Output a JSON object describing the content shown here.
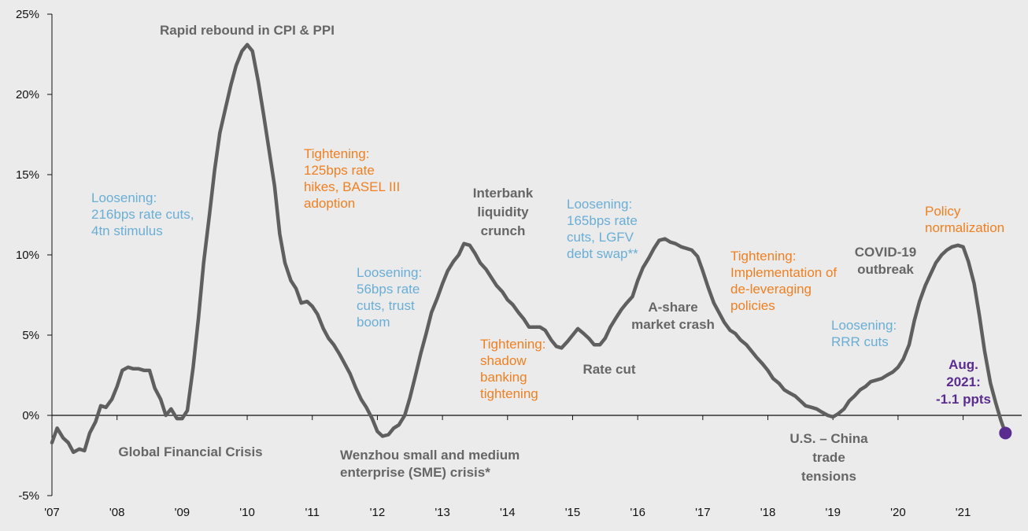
{
  "chart_data": {
    "type": "line",
    "title": "",
    "xlabel": "",
    "ylabel": "",
    "x_range": [
      2007.0,
      2021.9
    ],
    "ylim": [
      -5,
      25
    ],
    "y_ticks": [
      25,
      20,
      15,
      10,
      5,
      0,
      -5
    ],
    "y_tick_labels": [
      "25%",
      "20%",
      "15%",
      "10%",
      "5%",
      "0%",
      "-5%"
    ],
    "x_ticks": [
      2007,
      2008,
      2009,
      2010,
      2011,
      2012,
      2013,
      2014,
      2015,
      2016,
      2017,
      2018,
      2019,
      2020,
      2021
    ],
    "x_tick_labels": [
      "'07",
      "'08",
      "'09",
      "'10",
      "'11",
      "'12",
      "'13",
      "'14",
      "'15",
      "'16",
      "'17",
      "'18",
      "'19",
      "'20",
      "'21"
    ],
    "grid": false,
    "series": [
      {
        "color": "#5f5f5f",
        "points": [
          [
            2007.0,
            -1.7
          ],
          [
            2007.08,
            -0.8
          ],
          [
            2007.17,
            -1.4
          ],
          [
            2007.25,
            -1.7
          ],
          [
            2007.33,
            -2.3
          ],
          [
            2007.42,
            -2.1
          ],
          [
            2007.5,
            -2.2
          ],
          [
            2007.58,
            -1.1
          ],
          [
            2007.67,
            -0.4
          ],
          [
            2007.75,
            0.6
          ],
          [
            2007.83,
            0.5
          ],
          [
            2007.92,
            1.0
          ],
          [
            2008.0,
            1.8
          ],
          [
            2008.08,
            2.8
          ],
          [
            2008.17,
            3.0
          ],
          [
            2008.25,
            2.9
          ],
          [
            2008.33,
            2.9
          ],
          [
            2008.42,
            2.8
          ],
          [
            2008.5,
            2.8
          ],
          [
            2008.58,
            1.7
          ],
          [
            2008.67,
            1.0
          ],
          [
            2008.75,
            0.0
          ],
          [
            2008.83,
            0.4
          ],
          [
            2008.92,
            -0.2
          ],
          [
            2009.0,
            -0.2
          ],
          [
            2009.08,
            0.3
          ],
          [
            2009.17,
            3.0
          ],
          [
            2009.25,
            6.0
          ],
          [
            2009.33,
            9.5
          ],
          [
            2009.42,
            12.5
          ],
          [
            2009.5,
            15.3
          ],
          [
            2009.58,
            17.6
          ],
          [
            2009.67,
            19.2
          ],
          [
            2009.75,
            20.6
          ],
          [
            2009.83,
            21.8
          ],
          [
            2009.92,
            22.7
          ],
          [
            2010.0,
            23.1
          ],
          [
            2010.08,
            22.7
          ],
          [
            2010.17,
            20.8
          ],
          [
            2010.25,
            18.8
          ],
          [
            2010.33,
            16.7
          ],
          [
            2010.42,
            14.3
          ],
          [
            2010.5,
            11.3
          ],
          [
            2010.58,
            9.5
          ],
          [
            2010.67,
            8.4
          ],
          [
            2010.75,
            7.9
          ],
          [
            2010.83,
            7.0
          ],
          [
            2010.92,
            7.1
          ],
          [
            2011.0,
            6.8
          ],
          [
            2011.08,
            6.3
          ],
          [
            2011.17,
            5.4
          ],
          [
            2011.25,
            4.8
          ],
          [
            2011.33,
            4.4
          ],
          [
            2011.42,
            3.8
          ],
          [
            2011.5,
            3.2
          ],
          [
            2011.58,
            2.6
          ],
          [
            2011.67,
            1.7
          ],
          [
            2011.75,
            1.0
          ],
          [
            2011.83,
            0.5
          ],
          [
            2011.92,
            -0.2
          ],
          [
            2012.0,
            -1.0
          ],
          [
            2012.08,
            -1.3
          ],
          [
            2012.17,
            -1.2
          ],
          [
            2012.25,
            -0.8
          ],
          [
            2012.33,
            -0.6
          ],
          [
            2012.42,
            0.0
          ],
          [
            2012.5,
            1.1
          ],
          [
            2012.58,
            2.4
          ],
          [
            2012.67,
            3.9
          ],
          [
            2012.75,
            5.1
          ],
          [
            2012.83,
            6.4
          ],
          [
            2012.92,
            7.3
          ],
          [
            2013.0,
            8.2
          ],
          [
            2013.08,
            9.0
          ],
          [
            2013.17,
            9.6
          ],
          [
            2013.25,
            10.0
          ],
          [
            2013.33,
            10.7
          ],
          [
            2013.42,
            10.6
          ],
          [
            2013.5,
            10.1
          ],
          [
            2013.58,
            9.5
          ],
          [
            2013.67,
            9.1
          ],
          [
            2013.75,
            8.6
          ],
          [
            2013.83,
            8.1
          ],
          [
            2013.92,
            7.7
          ],
          [
            2014.0,
            7.2
          ],
          [
            2014.08,
            6.9
          ],
          [
            2014.17,
            6.4
          ],
          [
            2014.25,
            6.0
          ],
          [
            2014.33,
            5.5
          ],
          [
            2014.42,
            5.5
          ],
          [
            2014.5,
            5.5
          ],
          [
            2014.58,
            5.3
          ],
          [
            2014.67,
            4.7
          ],
          [
            2014.75,
            4.3
          ],
          [
            2014.83,
            4.2
          ],
          [
            2014.92,
            4.6
          ],
          [
            2015.0,
            5.0
          ],
          [
            2015.08,
            5.4
          ],
          [
            2015.17,
            5.1
          ],
          [
            2015.25,
            4.8
          ],
          [
            2015.33,
            4.4
          ],
          [
            2015.42,
            4.4
          ],
          [
            2015.5,
            4.8
          ],
          [
            2015.58,
            5.5
          ],
          [
            2015.67,
            6.1
          ],
          [
            2015.75,
            6.6
          ],
          [
            2015.83,
            7.0
          ],
          [
            2015.92,
            7.4
          ],
          [
            2016.0,
            8.4
          ],
          [
            2016.08,
            9.2
          ],
          [
            2016.17,
            9.8
          ],
          [
            2016.25,
            10.4
          ],
          [
            2016.33,
            10.9
          ],
          [
            2016.42,
            11.0
          ],
          [
            2016.5,
            10.8
          ],
          [
            2016.58,
            10.7
          ],
          [
            2016.67,
            10.5
          ],
          [
            2016.75,
            10.4
          ],
          [
            2016.83,
            10.3
          ],
          [
            2016.92,
            9.9
          ],
          [
            2017.0,
            9.0
          ],
          [
            2017.08,
            8.0
          ],
          [
            2017.17,
            7.0
          ],
          [
            2017.25,
            6.4
          ],
          [
            2017.33,
            5.8
          ],
          [
            2017.42,
            5.3
          ],
          [
            2017.5,
            5.1
          ],
          [
            2017.58,
            4.7
          ],
          [
            2017.67,
            4.4
          ],
          [
            2017.75,
            4.0
          ],
          [
            2017.83,
            3.6
          ],
          [
            2017.92,
            3.2
          ],
          [
            2018.0,
            2.8
          ],
          [
            2018.08,
            2.3
          ],
          [
            2018.17,
            2.0
          ],
          [
            2018.25,
            1.6
          ],
          [
            2018.33,
            1.4
          ],
          [
            2018.42,
            1.2
          ],
          [
            2018.5,
            0.9
          ],
          [
            2018.58,
            0.6
          ],
          [
            2018.67,
            0.5
          ],
          [
            2018.75,
            0.4
          ],
          [
            2018.83,
            0.2
          ],
          [
            2018.92,
            0.0
          ],
          [
            2019.0,
            -0.1
          ],
          [
            2019.08,
            0.1
          ],
          [
            2019.17,
            0.4
          ],
          [
            2019.25,
            0.9
          ],
          [
            2019.33,
            1.2
          ],
          [
            2019.42,
            1.6
          ],
          [
            2019.5,
            1.8
          ],
          [
            2019.58,
            2.1
          ],
          [
            2019.67,
            2.2
          ],
          [
            2019.75,
            2.3
          ],
          [
            2019.83,
            2.5
          ],
          [
            2019.92,
            2.7
          ],
          [
            2020.0,
            3.0
          ],
          [
            2020.08,
            3.5
          ],
          [
            2020.17,
            4.4
          ],
          [
            2020.25,
            5.9
          ],
          [
            2020.33,
            7.1
          ],
          [
            2020.42,
            8.1
          ],
          [
            2020.5,
            8.8
          ],
          [
            2020.58,
            9.5
          ],
          [
            2020.67,
            10.0
          ],
          [
            2020.75,
            10.3
          ],
          [
            2020.83,
            10.5
          ],
          [
            2020.92,
            10.6
          ],
          [
            2021.0,
            10.5
          ],
          [
            2021.08,
            9.6
          ],
          [
            2021.17,
            8.2
          ],
          [
            2021.25,
            6.2
          ],
          [
            2021.33,
            4.0
          ],
          [
            2021.42,
            2.0
          ],
          [
            2021.5,
            0.8
          ],
          [
            2021.58,
            -0.3
          ],
          [
            2021.65,
            -1.1
          ]
        ]
      }
    ],
    "endpoint": {
      "x": 2021.65,
      "y": -1.1,
      "color": "#5b2c8f"
    },
    "annotations": [
      {
        "id": "rapid-rebound",
        "lines": [
          "Rapid rebound in CPI & PPI"
        ],
        "color": "#666666",
        "bold": true
      },
      {
        "id": "loosening-216",
        "lines": [
          "Loosening:",
          "216bps rate cuts,",
          "4tn stimulus"
        ],
        "color": "#6aaed6",
        "bold": false
      },
      {
        "id": "tightening-125",
        "lines": [
          "Tightening:",
          "125bps rate",
          "hikes, BASEL III",
          "adoption"
        ],
        "color": "#ef8022",
        "bold": false
      },
      {
        "id": "interbank",
        "lines": [
          "Interbank",
          "liquidity",
          "crunch"
        ],
        "color": "#666666",
        "bold": true
      },
      {
        "id": "loosening-165",
        "lines": [
          "Loosening:",
          "165bps rate",
          "cuts, LGFV",
          "debt swap**"
        ],
        "color": "#6aaed6",
        "bold": false
      },
      {
        "id": "policy-normalization",
        "lines": [
          "Policy",
          "normalization"
        ],
        "color": "#ef8022",
        "bold": false
      },
      {
        "id": "loosening-56",
        "lines": [
          "Loosening:",
          "56bps rate",
          "cuts, trust",
          "boom"
        ],
        "color": "#6aaed6",
        "bold": false
      },
      {
        "id": "tightening-deleveraging",
        "lines": [
          "Tightening:",
          "Implementation of",
          "de-leveraging",
          "policies"
        ],
        "color": "#ef8022",
        "bold": false
      },
      {
        "id": "covid",
        "lines": [
          "COVID-19",
          "outbreak"
        ],
        "color": "#666666",
        "bold": true
      },
      {
        "id": "ashare",
        "lines": [
          "A-share",
          "market crash"
        ],
        "color": "#666666",
        "bold": true
      },
      {
        "id": "loosening-rrr",
        "lines": [
          "Loosening:",
          "RRR cuts"
        ],
        "color": "#6aaed6",
        "bold": false
      },
      {
        "id": "tightening-shadow",
        "lines": [
          "Tightening:",
          "shadow",
          "banking",
          "tightening"
        ],
        "color": "#ef8022",
        "bold": false
      },
      {
        "id": "rate-cut",
        "lines": [
          "Rate cut"
        ],
        "color": "#666666",
        "bold": true
      },
      {
        "id": "aug-2021",
        "lines": [
          "Aug.",
          "2021:",
          "-1.1 ppts"
        ],
        "color": "#5b2c8f",
        "bold": true
      },
      {
        "id": "gfc",
        "lines": [
          "Global Financial Crisis"
        ],
        "color": "#666666",
        "bold": true
      },
      {
        "id": "wenzhou",
        "lines": [
          "Wenzhou small and medium",
          "enterprise (SME) crisis*"
        ],
        "color": "#666666",
        "bold": true
      },
      {
        "id": "us-china",
        "lines": [
          "U.S. – China",
          "trade",
          "tensions"
        ],
        "color": "#666666",
        "bold": true
      }
    ]
  }
}
